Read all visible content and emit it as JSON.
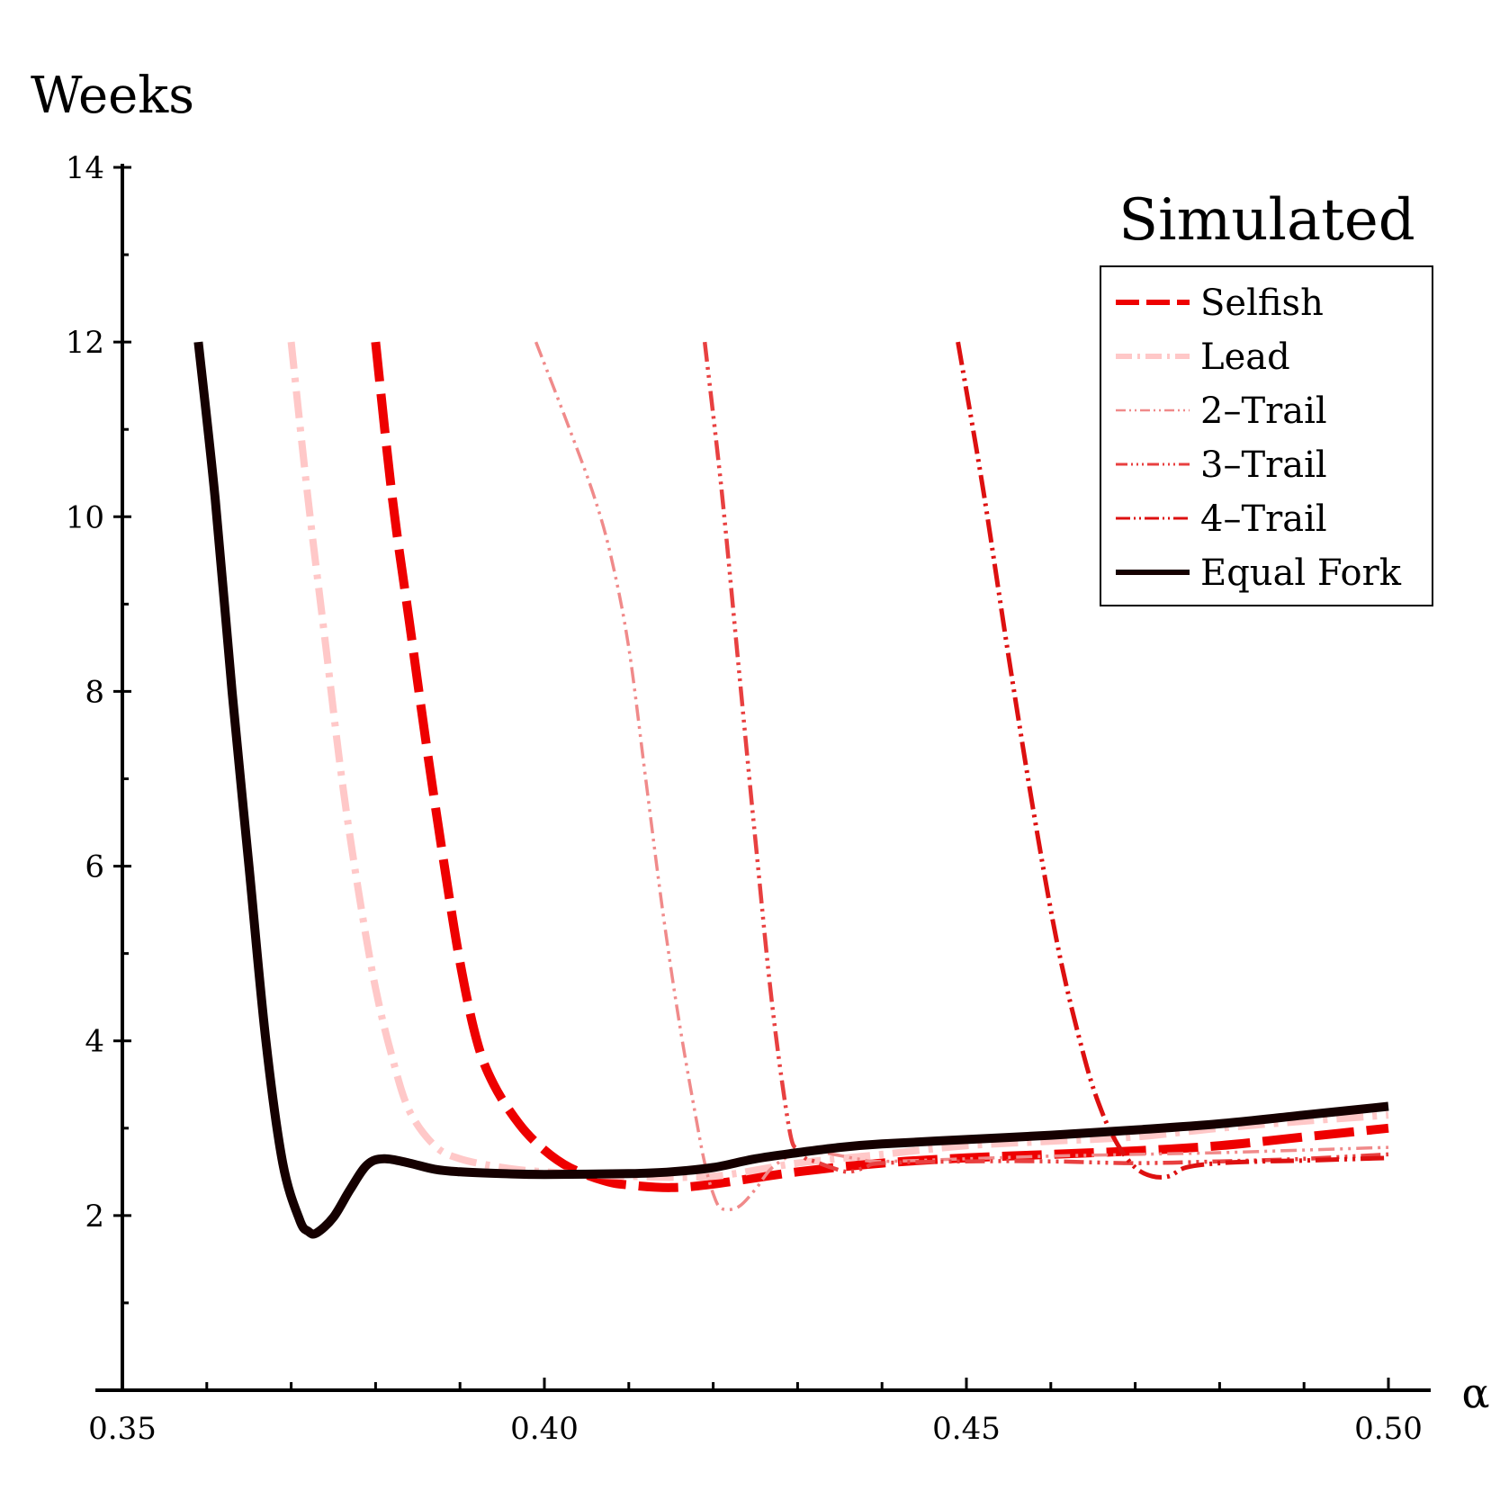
{
  "chart_data": {
    "type": "line",
    "title": "Simulated",
    "ylabel": "Weeks",
    "xlabel": "α",
    "xlim": [
      0.35,
      0.5
    ],
    "ylim": [
      0,
      14
    ],
    "xticks": [
      0.35,
      0.4,
      0.45,
      0.5
    ],
    "xtick_labels": [
      "0.35",
      "0.40",
      "0.45",
      "0.50"
    ],
    "yticks": [
      2,
      4,
      6,
      8,
      10,
      12,
      14
    ],
    "ytick_labels": [
      "2",
      "4",
      "6",
      "8",
      "10",
      "12",
      "14"
    ],
    "grid": false,
    "legend_position": "top-right",
    "series": [
      {
        "name": "Selfish",
        "color": "#ee0000",
        "style": "long-dash",
        "points": [
          [
            0.38,
            12.0
          ],
          [
            0.382,
            10.2
          ],
          [
            0.384,
            8.8
          ],
          [
            0.386,
            7.4
          ],
          [
            0.388,
            6.1
          ],
          [
            0.39,
            4.9
          ],
          [
            0.392,
            4.0
          ],
          [
            0.394,
            3.5
          ],
          [
            0.397,
            3.05
          ],
          [
            0.4,
            2.75
          ],
          [
            0.403,
            2.55
          ],
          [
            0.407,
            2.4
          ],
          [
            0.41,
            2.35
          ],
          [
            0.415,
            2.32
          ],
          [
            0.42,
            2.36
          ],
          [
            0.43,
            2.5
          ],
          [
            0.44,
            2.6
          ],
          [
            0.45,
            2.66
          ],
          [
            0.46,
            2.7
          ],
          [
            0.47,
            2.74
          ],
          [
            0.48,
            2.8
          ],
          [
            0.49,
            2.9
          ],
          [
            0.5,
            3.0
          ]
        ]
      },
      {
        "name": "Lead",
        "color": "#ffc8c8",
        "style": "dash-dot",
        "points": [
          [
            0.37,
            12.0
          ],
          [
            0.372,
            10.2
          ],
          [
            0.374,
            8.6
          ],
          [
            0.376,
            7.0
          ],
          [
            0.378,
            5.7
          ],
          [
            0.38,
            4.6
          ],
          [
            0.382,
            3.8
          ],
          [
            0.384,
            3.2
          ],
          [
            0.387,
            2.8
          ],
          [
            0.39,
            2.65
          ],
          [
            0.395,
            2.55
          ],
          [
            0.4,
            2.5
          ],
          [
            0.41,
            2.45
          ],
          [
            0.42,
            2.45
          ],
          [
            0.43,
            2.6
          ],
          [
            0.44,
            2.7
          ],
          [
            0.45,
            2.8
          ],
          [
            0.46,
            2.85
          ],
          [
            0.47,
            2.9
          ],
          [
            0.48,
            3.0
          ],
          [
            0.49,
            3.08
          ],
          [
            0.5,
            3.15
          ]
        ]
      },
      {
        "name": "2–Trail",
        "color": "#f08a8a",
        "style": "dash-dot-dot",
        "points": [
          [
            0.399,
            12.0
          ],
          [
            0.403,
            11.0
          ],
          [
            0.406,
            10.2
          ],
          [
            0.408,
            9.5
          ],
          [
            0.41,
            8.5
          ],
          [
            0.412,
            7.0
          ],
          [
            0.414,
            5.5
          ],
          [
            0.416,
            4.2
          ],
          [
            0.418,
            3.1
          ],
          [
            0.419,
            2.6
          ],
          [
            0.42,
            2.25
          ],
          [
            0.421,
            2.08
          ],
          [
            0.423,
            2.1
          ],
          [
            0.425,
            2.3
          ],
          [
            0.427,
            2.55
          ],
          [
            0.43,
            2.72
          ],
          [
            0.433,
            2.72
          ],
          [
            0.437,
            2.65
          ],
          [
            0.44,
            2.62
          ],
          [
            0.45,
            2.65
          ],
          [
            0.46,
            2.68
          ],
          [
            0.47,
            2.7
          ],
          [
            0.48,
            2.72
          ],
          [
            0.49,
            2.75
          ],
          [
            0.5,
            2.78
          ]
        ]
      },
      {
        "name": "3–Trail",
        "color": "#e84040",
        "style": "dash-dot-dot-dot",
        "points": [
          [
            0.419,
            12.0
          ],
          [
            0.421,
            10.3
          ],
          [
            0.423,
            8.3
          ],
          [
            0.425,
            6.3
          ],
          [
            0.427,
            4.4
          ],
          [
            0.429,
            3.0
          ],
          [
            0.43,
            2.75
          ],
          [
            0.431,
            2.65
          ],
          [
            0.432,
            2.62
          ],
          [
            0.434,
            2.55
          ],
          [
            0.436,
            2.5
          ],
          [
            0.438,
            2.55
          ],
          [
            0.44,
            2.6
          ],
          [
            0.45,
            2.62
          ],
          [
            0.46,
            2.62
          ],
          [
            0.47,
            2.6
          ],
          [
            0.48,
            2.62
          ],
          [
            0.49,
            2.65
          ],
          [
            0.5,
            2.7
          ]
        ]
      },
      {
        "name": "4–Trail",
        "color": "#dd1010",
        "style": "dash-dot-dot-long",
        "points": [
          [
            0.449,
            12.0
          ],
          [
            0.452,
            10.3
          ],
          [
            0.455,
            8.4
          ],
          [
            0.458,
            6.6
          ],
          [
            0.461,
            5.0
          ],
          [
            0.464,
            3.8
          ],
          [
            0.466,
            3.2
          ],
          [
            0.468,
            2.8
          ],
          [
            0.47,
            2.55
          ],
          [
            0.472,
            2.45
          ],
          [
            0.474,
            2.45
          ],
          [
            0.476,
            2.55
          ],
          [
            0.48,
            2.6
          ],
          [
            0.485,
            2.62
          ],
          [
            0.49,
            2.63
          ],
          [
            0.5,
            2.66
          ]
        ]
      },
      {
        "name": "Equal Fork",
        "color": "#150000",
        "style": "solid",
        "points": [
          [
            0.359,
            12.0
          ],
          [
            0.361,
            10.2
          ],
          [
            0.363,
            8.0
          ],
          [
            0.365,
            6.0
          ],
          [
            0.367,
            4.0
          ],
          [
            0.369,
            2.6
          ],
          [
            0.371,
            1.95
          ],
          [
            0.372,
            1.82
          ],
          [
            0.373,
            1.8
          ],
          [
            0.375,
            1.98
          ],
          [
            0.377,
            2.3
          ],
          [
            0.379,
            2.58
          ],
          [
            0.381,
            2.65
          ],
          [
            0.384,
            2.6
          ],
          [
            0.387,
            2.53
          ],
          [
            0.39,
            2.5
          ],
          [
            0.395,
            2.48
          ],
          [
            0.4,
            2.47
          ],
          [
            0.41,
            2.48
          ],
          [
            0.415,
            2.5
          ],
          [
            0.42,
            2.55
          ],
          [
            0.425,
            2.65
          ],
          [
            0.43,
            2.72
          ],
          [
            0.435,
            2.78
          ],
          [
            0.44,
            2.82
          ],
          [
            0.45,
            2.87
          ],
          [
            0.46,
            2.92
          ],
          [
            0.47,
            2.98
          ],
          [
            0.48,
            3.05
          ],
          [
            0.49,
            3.15
          ],
          [
            0.5,
            3.25
          ]
        ]
      }
    ]
  }
}
